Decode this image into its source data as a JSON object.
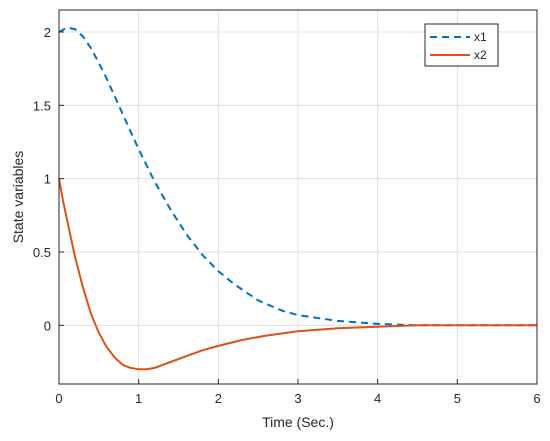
{
  "chart_data": {
    "type": "line",
    "title": "",
    "xlabel": "Time (Sec.)",
    "ylabel": "State variables",
    "xlim": [
      0,
      6
    ],
    "ylim": [
      -0.4,
      2.15
    ],
    "xticks": [
      "0",
      "1",
      "2",
      "3",
      "4",
      "5",
      "6"
    ],
    "yticks": [
      "0",
      "0.5",
      "1",
      "1.5",
      "2"
    ],
    "grid": true,
    "legend_position": "top-right",
    "series": [
      {
        "name": "x1",
        "color": "#0072BD",
        "style": "dashed",
        "x": [
          0,
          0.1,
          0.2,
          0.3,
          0.4,
          0.5,
          0.6,
          0.7,
          0.8,
          0.9,
          1.0,
          1.2,
          1.4,
          1.6,
          1.8,
          2.0,
          2.2,
          2.5,
          2.8,
          3.0,
          3.5,
          4.0,
          4.5,
          5.0,
          5.5,
          6.0
        ],
        "y": [
          2.0,
          2.03,
          2.02,
          1.97,
          1.89,
          1.79,
          1.68,
          1.56,
          1.44,
          1.32,
          1.2,
          0.98,
          0.79,
          0.62,
          0.48,
          0.37,
          0.28,
          0.17,
          0.1,
          0.07,
          0.03,
          0.01,
          0.0,
          0.0,
          0.0,
          0.0
        ]
      },
      {
        "name": "x2",
        "color": "#D95319",
        "style": "solid",
        "x": [
          0,
          0.05,
          0.1,
          0.2,
          0.3,
          0.4,
          0.5,
          0.6,
          0.7,
          0.8,
          0.9,
          1.0,
          1.1,
          1.2,
          1.4,
          1.6,
          1.8,
          2.0,
          2.3,
          2.6,
          3.0,
          3.5,
          4.0,
          4.5,
          5.0,
          5.5,
          6.0
        ],
        "y": [
          1.0,
          0.85,
          0.72,
          0.47,
          0.26,
          0.08,
          -0.05,
          -0.15,
          -0.22,
          -0.27,
          -0.29,
          -0.3,
          -0.3,
          -0.29,
          -0.25,
          -0.21,
          -0.17,
          -0.14,
          -0.1,
          -0.07,
          -0.04,
          -0.02,
          -0.01,
          0.0,
          0.0,
          0.0,
          0.0
        ]
      }
    ]
  }
}
